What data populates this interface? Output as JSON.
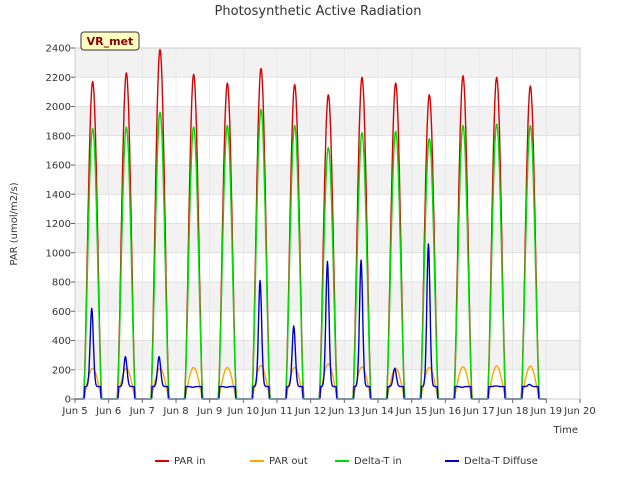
{
  "chart_data": {
    "type": "line",
    "title": "Photosynthetic Active Radiation",
    "badge": "VR_met",
    "xlabel": "Time",
    "ylabel": "PAR (umol/m2/s)",
    "xlim": [
      5,
      20
    ],
    "ylim": [
      0,
      2400
    ],
    "x_ticks": [
      5,
      6,
      7,
      8,
      9,
      10,
      11,
      12,
      13,
      14,
      15,
      16,
      17,
      18,
      19,
      20
    ],
    "x_tick_labels": [
      "Jun 5",
      "Jun 6",
      "Jun 7",
      "Jun 8",
      "Jun 9",
      "Jun 10",
      "Jun 11",
      "Jun 12",
      "Jun 13",
      "Jun 14",
      "Jun 15",
      "Jun 16",
      "Jun 17",
      "Jun 18",
      "Jun 19",
      "Jun 20"
    ],
    "y_ticks": [
      0,
      200,
      400,
      600,
      800,
      1000,
      1200,
      1400,
      1600,
      1800,
      2000,
      2200,
      2400
    ],
    "grid": true,
    "legend_position": "bottom",
    "days": [
      5,
      6,
      7,
      8,
      9,
      10,
      11,
      12,
      13,
      14,
      15,
      16,
      17,
      18
    ],
    "series": [
      {
        "name": "PAR in",
        "color": "#dd0000",
        "daily_peaks": [
          2170,
          2230,
          2390,
          2220,
          2160,
          2260,
          2150,
          2080,
          2200,
          2160,
          2080,
          2210,
          2200,
          2140
        ]
      },
      {
        "name": "PAR out",
        "color": "#ffa500",
        "daily_peaks": [
          210,
          210,
          210,
          215,
          215,
          230,
          215,
          240,
          220,
          210,
          215,
          220,
          225,
          225
        ]
      },
      {
        "name": "Delta-T in",
        "color": "#00dd00",
        "daily_peaks": [
          1850,
          1860,
          1960,
          1860,
          1870,
          1980,
          1870,
          1720,
          1820,
          1830,
          1780,
          1870,
          1880,
          1870
        ]
      },
      {
        "name": "Delta-T Diffuse",
        "color": "#0000cc",
        "daily_peaks": [
          620,
          290,
          290,
          80,
          80,
          810,
          500,
          940,
          950,
          210,
          1060,
          80,
          90,
          100
        ]
      }
    ]
  }
}
